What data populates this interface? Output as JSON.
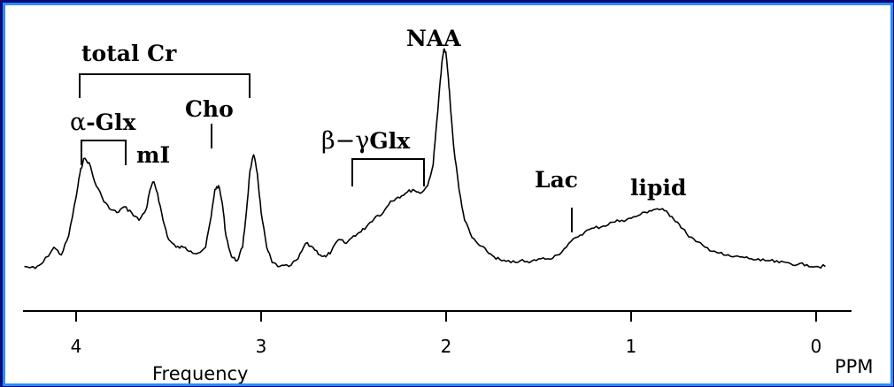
{
  "chart_data": {
    "type": "line",
    "xlabel": "Frequency",
    "x_unit": "PPM",
    "x_axis_reversed": true,
    "xlim": [
      4.3,
      -0.1
    ],
    "x_ticks": [
      4,
      3,
      2,
      1,
      0
    ],
    "x_tick_labels": [
      "4",
      "3",
      "2",
      "1",
      "0"
    ],
    "y_axis_visible": false,
    "grid": false,
    "series": [
      {
        "x": [
          4.28,
          4.22,
          4.18,
          4.12,
          4.08,
          4.04,
          4.0,
          3.98,
          3.96,
          3.93,
          3.9,
          3.86,
          3.82,
          3.78,
          3.74,
          3.7,
          3.66,
          3.62,
          3.6,
          3.58,
          3.56,
          3.53,
          3.5,
          3.46,
          3.42,
          3.38,
          3.34,
          3.3,
          3.27,
          3.25,
          3.23,
          3.21,
          3.19,
          3.16,
          3.13,
          3.1,
          3.08,
          3.06,
          3.04,
          3.02,
          3.0,
          2.97,
          2.94,
          2.9,
          2.85,
          2.8,
          2.76,
          2.72,
          2.68,
          2.65,
          2.62,
          2.58,
          2.54,
          2.5,
          2.46,
          2.42,
          2.38,
          2.34,
          2.3,
          2.26,
          2.22,
          2.18,
          2.14,
          2.1,
          2.07,
          2.05,
          2.03,
          2.02,
          2.01,
          2.0,
          1.99,
          1.98,
          1.96,
          1.93,
          1.9,
          1.86,
          1.82,
          1.78,
          1.74,
          1.7,
          1.65,
          1.6,
          1.55,
          1.5,
          1.45,
          1.4,
          1.35,
          1.3,
          1.25,
          1.2,
          1.15,
          1.1,
          1.05,
          1.0,
          0.95,
          0.9,
          0.86,
          0.82,
          0.78,
          0.74,
          0.7,
          0.65,
          0.6,
          0.55,
          0.5,
          0.45,
          0.4,
          0.35,
          0.3,
          0.25,
          0.2,
          0.15,
          0.1,
          0.05,
          0.0,
          -0.05
        ],
        "y": [
          0.02,
          0.01,
          0.04,
          0.12,
          0.08,
          0.18,
          0.38,
          0.5,
          0.58,
          0.56,
          0.46,
          0.38,
          0.32,
          0.3,
          0.33,
          0.3,
          0.26,
          0.32,
          0.42,
          0.46,
          0.4,
          0.26,
          0.16,
          0.12,
          0.12,
          0.1,
          0.09,
          0.12,
          0.28,
          0.42,
          0.44,
          0.35,
          0.18,
          0.07,
          0.05,
          0.12,
          0.3,
          0.52,
          0.6,
          0.5,
          0.3,
          0.12,
          0.04,
          0.02,
          0.02,
          0.06,
          0.14,
          0.12,
          0.08,
          0.07,
          0.1,
          0.16,
          0.14,
          0.18,
          0.2,
          0.24,
          0.28,
          0.3,
          0.36,
          0.38,
          0.4,
          0.42,
          0.4,
          0.44,
          0.55,
          0.78,
          1.0,
          1.1,
          1.15,
          1.12,
          1.02,
          0.9,
          0.65,
          0.42,
          0.26,
          0.17,
          0.13,
          0.1,
          0.07,
          0.05,
          0.04,
          0.05,
          0.04,
          0.06,
          0.06,
          0.08,
          0.12,
          0.17,
          0.2,
          0.22,
          0.23,
          0.25,
          0.26,
          0.27,
          0.29,
          0.31,
          0.32,
          0.31,
          0.28,
          0.24,
          0.19,
          0.15,
          0.12,
          0.1,
          0.08,
          0.07,
          0.07,
          0.06,
          0.05,
          0.05,
          0.04,
          0.04,
          0.03,
          0.03,
          0.02,
          0.02
        ]
      }
    ],
    "ylim": [
      -0.05,
      1.2
    ],
    "annotations": [
      {
        "id": "total-cr",
        "text": "total Cr",
        "bracket": [
          3.96,
          3.02
        ]
      },
      {
        "id": "alpha-glx",
        "text_greek": "α",
        "text": "-Glx",
        "bracket": [
          3.96,
          3.7
        ]
      },
      {
        "id": "cho",
        "text": "Cho",
        "marker_x": 3.22
      },
      {
        "id": "mi",
        "text": "mI"
      },
      {
        "id": "beta-gamma-glx",
        "text_greek": "β−γ",
        "text": "Glx",
        "bracket": [
          2.48,
          2.1
        ]
      },
      {
        "id": "naa",
        "text": "NAA"
      },
      {
        "id": "lac",
        "text": "Lac",
        "marker_x": 1.33
      },
      {
        "id": "lipid",
        "text": "lipid"
      }
    ]
  },
  "theme": {
    "background": "#0a0a7a",
    "frame_border": "#2a8cff",
    "panel": "#ffffff",
    "line": "#000000"
  }
}
